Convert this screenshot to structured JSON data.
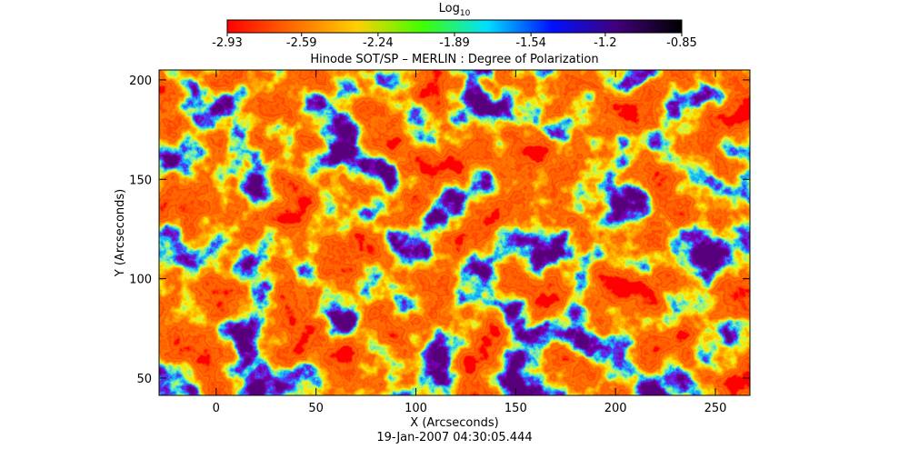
{
  "chart_data": {
    "type": "heatmap",
    "title": "Hinode SOT/SP – MERLIN : Degree of Polarization",
    "colorbar_label": "Log",
    "colorbar_label_subscript": "10",
    "colorbar_lim": [
      -2.93,
      -0.85
    ],
    "colorbar_ticks": [
      -2.93,
      -2.59,
      -2.24,
      -1.89,
      -1.54,
      -1.2,
      {
        "value": -0.85,
        "label": "-0.85"
      }
    ],
    "colormap": [
      "#ff0000",
      "#ff6a00",
      "#ffd000",
      "#40ff00",
      "#00e0ff",
      "#0010ff",
      "#40007a",
      "#000000"
    ],
    "xlabel": "X (Arcseconds)",
    "ylabel": "Y (Arcseconds)",
    "xlim": [
      -28.6,
      267.3
    ],
    "ylim": [
      41.3,
      205
    ],
    "xticks": [
      0,
      50,
      100,
      150,
      200,
      250
    ],
    "yticks": [
      50,
      100,
      150,
      200
    ],
    "footnote": "19-Jan-2007 04:30:05.444"
  }
}
